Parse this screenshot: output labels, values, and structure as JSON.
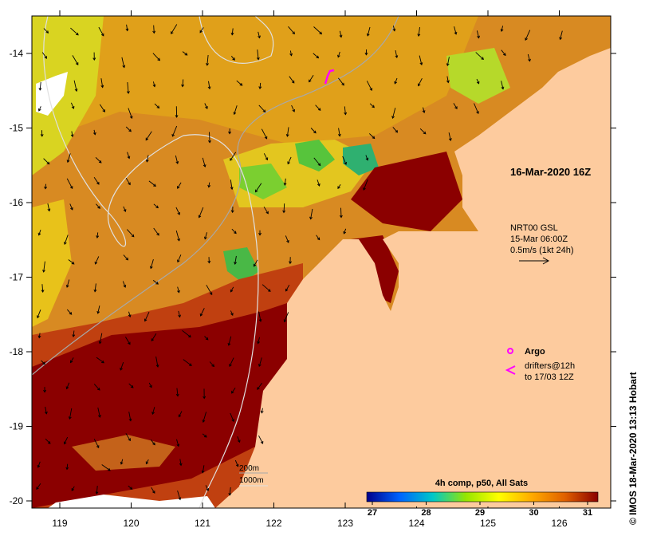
{
  "map": {
    "date_label": "16-Mar-2020 16Z",
    "current_legend": {
      "line1": "NRT00 GSL",
      "line2": "15-Mar 06:00Z",
      "line3": "0.5m/s (1kt 24h)"
    },
    "argo_label": "Argo",
    "drifters_line1": "drifters@12h",
    "drifters_line2": "to 17/03 12Z",
    "contour_200": "200m",
    "contour_1000": "1000m",
    "credit": "© IMOS 18-Mar-2020 13:13 Hobart",
    "colorbar": {
      "title": "4h comp, p50, All Sats",
      "ticks": [
        "27",
        "28",
        "29",
        "30",
        "31"
      ],
      "colors": [
        "#00008c",
        "#0064ff",
        "#00c8c8",
        "#96e600",
        "#ffff00",
        "#ffaa00",
        "#e06000",
        "#8b0000"
      ]
    },
    "x_ticks": [
      "119",
      "120",
      "121",
      "122",
      "123",
      "124",
      "125",
      "126"
    ],
    "y_ticks": [
      "-14",
      "-15",
      "-16",
      "-17",
      "-18",
      "-19",
      "-20"
    ],
    "colors": {
      "land": "#fdcb9e",
      "warm": "#8b0000",
      "mid": "#d9851f",
      "cool": "#e6b000",
      "green": "#57c43c",
      "argo": "#ff00ff"
    }
  }
}
